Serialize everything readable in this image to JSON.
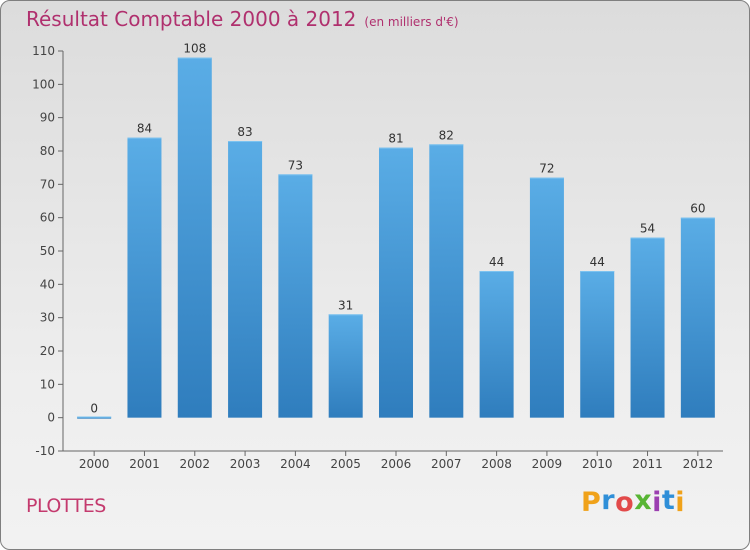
{
  "chart_data": {
    "type": "bar",
    "title": "Résultat Comptable 2000 à 2012",
    "subtitle": "(en milliers d'€)",
    "xlabel": "",
    "ylabel": "",
    "ylim": [
      -10,
      110
    ],
    "yticks": [
      -10,
      0,
      10,
      20,
      30,
      40,
      50,
      60,
      70,
      80,
      90,
      100,
      110
    ],
    "categories": [
      "2000",
      "2001",
      "2002",
      "2003",
      "2004",
      "2005",
      "2006",
      "2007",
      "2008",
      "2009",
      "2010",
      "2011",
      "2012"
    ],
    "values": [
      0,
      84,
      108,
      83,
      73,
      31,
      81,
      82,
      44,
      72,
      44,
      54,
      60
    ],
    "grid": false,
    "bar_color_top": "#5aade6",
    "bar_color_bottom": "#2f7dbd"
  },
  "footer": {
    "town": "PLOTTES",
    "logo_letters": [
      "P",
      "r",
      "o",
      "x",
      "i",
      "t",
      "i"
    ],
    "logo_colors": [
      "#f0a21a",
      "#2f8fd8",
      "#e24a4a",
      "#58b534",
      "#9b3fb0",
      "#2f8fd8",
      "#f0a21a"
    ]
  }
}
